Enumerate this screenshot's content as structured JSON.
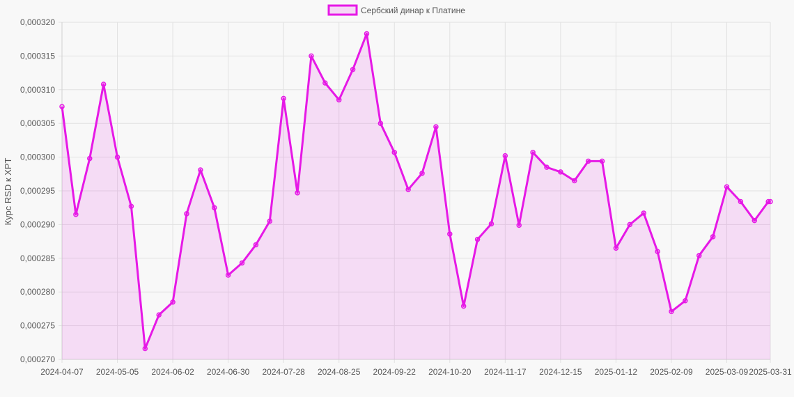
{
  "chart_data": {
    "type": "area",
    "legend": {
      "label": "Сербский динар к Платине",
      "position": "top"
    },
    "ylabel": "Курс RSD к XPT",
    "xlabel": "",
    "ylim": [
      0.00027,
      0.00032
    ],
    "y_ticks": [
      "0,000270",
      "0,000275",
      "0,000280",
      "0,000285",
      "0,000290",
      "0,000295",
      "0,000300",
      "0,000305",
      "0,000310",
      "0,000315",
      "0,000320"
    ],
    "x_ticks": [
      "2024-04-07",
      "2024-05-05",
      "2024-06-02",
      "2024-06-30",
      "2024-07-28",
      "2024-08-25",
      "2024-09-22",
      "2024-10-20",
      "2024-11-17",
      "2024-12-15",
      "2025-01-12",
      "2025-02-09",
      "2025-03-09",
      "2025-03-31"
    ],
    "grid": true,
    "series": [
      {
        "name": "Сербский динар к Платине",
        "color": "#e619e6",
        "fill": "rgba(230,25,230,0.12)",
        "x": [
          "2024-04-07",
          "2024-04-14",
          "2024-04-21",
          "2024-04-28",
          "2024-05-05",
          "2024-05-12",
          "2024-05-19",
          "2024-05-26",
          "2024-06-02",
          "2024-06-09",
          "2024-06-16",
          "2024-06-23",
          "2024-06-30",
          "2024-07-07",
          "2024-07-14",
          "2024-07-21",
          "2024-07-28",
          "2024-08-04",
          "2024-08-11",
          "2024-08-18",
          "2024-08-25",
          "2024-09-01",
          "2024-09-08",
          "2024-09-15",
          "2024-09-22",
          "2024-09-29",
          "2024-10-06",
          "2024-10-13",
          "2024-10-20",
          "2024-10-27",
          "2024-11-03",
          "2024-11-10",
          "2024-11-17",
          "2024-11-24",
          "2024-12-01",
          "2024-12-08",
          "2024-12-15",
          "2024-12-22",
          "2024-12-29",
          "2025-01-05",
          "2025-01-12",
          "2025-01-19",
          "2025-01-26",
          "2025-02-02",
          "2025-02-09",
          "2025-02-16",
          "2025-02-23",
          "2025-03-02",
          "2025-03-09",
          "2025-03-16",
          "2025-03-23",
          "2025-03-30",
          "2025-03-31"
        ],
        "values": [
          0.0003075,
          0.0002915,
          0.0002998,
          0.0003108,
          0.0003,
          0.0002927,
          0.0002716,
          0.0002766,
          0.0002785,
          0.0002916,
          0.0002981,
          0.0002925,
          0.0002825,
          0.0002843,
          0.000287,
          0.0002905,
          0.0003087,
          0.0002947,
          0.000315,
          0.000311,
          0.0003085,
          0.000313,
          0.0003183,
          0.000305,
          0.0003007,
          0.0002952,
          0.0002976,
          0.0003045,
          0.0002886,
          0.0002779,
          0.0002878,
          0.0002901,
          0.0003002,
          0.0002899,
          0.0003007,
          0.0002985,
          0.0002978,
          0.0002965,
          0.0002994,
          0.0002994,
          0.0002865,
          0.00029,
          0.0002917,
          0.000286,
          0.0002771,
          0.0002787,
          0.0002854,
          0.0002882,
          0.0002956,
          0.0002934,
          0.0002906,
          0.0002934,
          0.0002934
        ]
      }
    ]
  }
}
